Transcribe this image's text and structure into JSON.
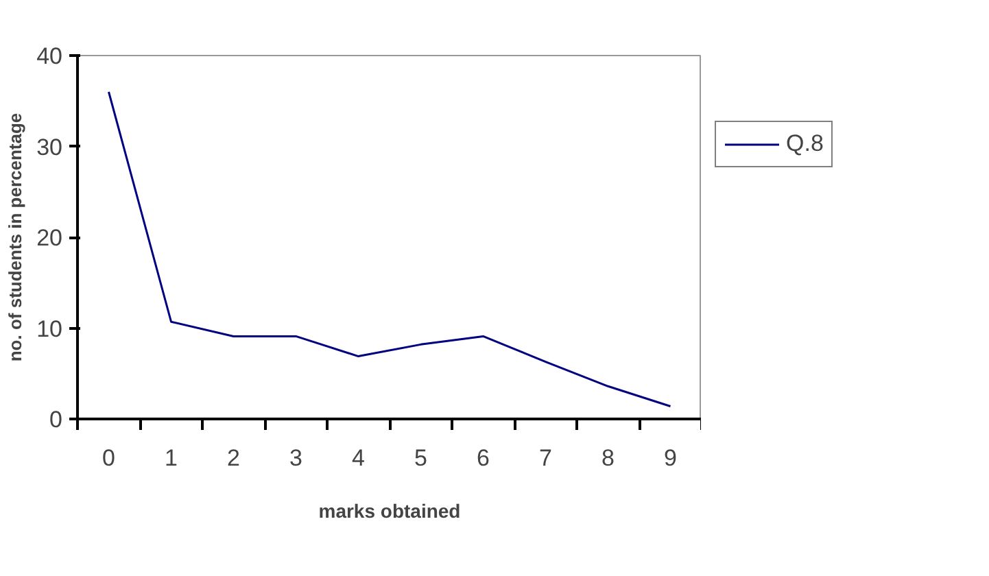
{
  "chart_data": {
    "type": "line",
    "xlabel": "marks obtained",
    "ylabel": "no. of students in percentage",
    "categories": [
      "0",
      "1",
      "2",
      "3",
      "4",
      "5",
      "6",
      "7",
      "8",
      "9"
    ],
    "series": [
      {
        "name": "Q.8",
        "color": "#000080",
        "values": [
          36,
          10.7,
          9.1,
          9.1,
          6.9,
          8.2,
          9.1,
          6.3,
          3.6,
          1.4
        ]
      }
    ],
    "ylim": [
      0,
      40
    ],
    "yticks": [
      0,
      10,
      20,
      30,
      40
    ],
    "grid": false,
    "legend": "right",
    "marker": "none",
    "line_style": "solid"
  }
}
